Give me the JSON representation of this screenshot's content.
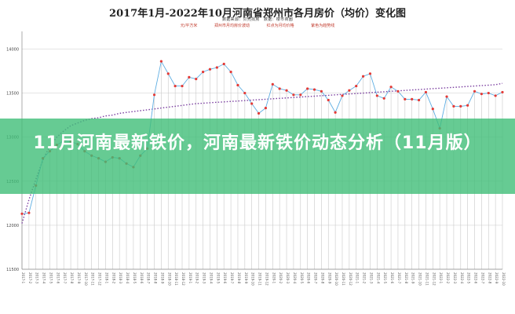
{
  "page": {
    "overlay_headline": "11月河南最新铁价，河南最新铁价动态分析（11月版）",
    "banner_color": "#3fbf78"
  },
  "chart_data": {
    "type": "line",
    "title": "2017年1月-2022年10月河南省郑州市各月房价（均价）变化图",
    "source_line": "数据来源：贝壳找房　数据：楼市商圈",
    "legend": [
      "元/平方米",
      "郑州市月均房价波动",
      "红点为月均价格",
      "紫色为趋势线"
    ],
    "ylim": [
      11500,
      14200
    ],
    "yticks": [
      11500,
      12000,
      12500,
      13000,
      13500,
      14000
    ],
    "grid": true,
    "series": [
      {
        "color": "#e53935",
        "values": [
          12130,
          12140,
          12450,
          12760,
          12840,
          12910,
          12960,
          12950,
          12920,
          12840,
          12790,
          12760,
          12720,
          12770,
          12760,
          12700,
          12660,
          12790,
          12870,
          13480,
          13860,
          13720,
          13580,
          13580,
          13680,
          13660,
          13740,
          13770,
          13790,
          13830,
          13740,
          13590,
          13500,
          13380,
          13270,
          13330,
          13600,
          13550,
          13530,
          13480,
          13480,
          13550,
          13540,
          13520,
          13420,
          13280,
          13470,
          13530,
          13580,
          13690,
          13720,
          13470,
          13440,
          13570,
          13520,
          13430,
          13430,
          13420,
          13510,
          13320,
          13100,
          13460,
          13350,
          13350,
          13360,
          13520,
          13490,
          13500,
          13470,
          13510
        ]
      },
      {
        "color": "#7b3fa0",
        "values": [
          12020,
          12290,
          12520,
          12740,
          12900,
          13000,
          13070,
          13130,
          13160,
          13190,
          13210,
          13220,
          13240,
          13250,
          13270,
          13280,
          13290,
          13300,
          13310,
          13320,
          13330,
          13340,
          13350,
          13360,
          13370,
          13380,
          13385,
          13390,
          13395,
          13400,
          13405,
          13410,
          13415,
          13420,
          13425,
          13430,
          13435,
          13440,
          13445,
          13450,
          13455,
          13460,
          13465,
          13470,
          13475,
          13480,
          13485,
          13490,
          13495,
          13500,
          13505,
          13510,
          13515,
          13520,
          13525,
          13530,
          13535,
          13540,
          13545,
          13550,
          13555,
          13560,
          13565,
          13570,
          13575,
          13580,
          13585,
          13590,
          13595,
          13610
        ]
      }
    ],
    "x_first": "2017年1月",
    "x_last": "2022年10月"
  }
}
